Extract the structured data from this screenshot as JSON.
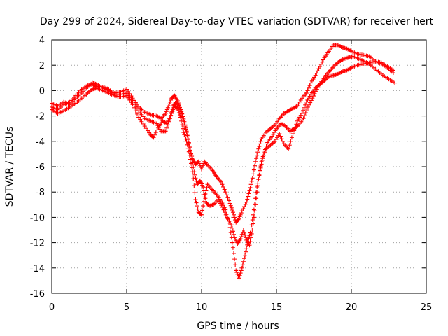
{
  "chart_data": {
    "type": "scatter",
    "title": "Day 299 of 2024, Sidereal Day-to-day VTEC variation (SDTVAR) for receiver hert",
    "xlabel": "GPS time / hours",
    "ylabel": "SDTVAR / TECUs",
    "xlim": [
      0,
      25
    ],
    "ylim": [
      -16,
      4
    ],
    "xticks": [
      "0",
      "5",
      "10",
      "15",
      "20",
      "25"
    ],
    "yticks": [
      "4",
      "2",
      "0",
      "-2",
      "-4",
      "-6",
      "-8",
      "-10",
      "-12",
      "-14",
      "-16"
    ],
    "grid": true,
    "marker": "+",
    "color": "#ff0000",
    "series": [
      {
        "points": [
          [
            0.0,
            -1.0
          ],
          [
            0.4,
            -1.2
          ],
          [
            0.8,
            -0.9
          ],
          [
            1.2,
            -1.1
          ],
          [
            1.6,
            -0.6
          ],
          [
            2.0,
            -0.2
          ],
          [
            2.4,
            0.3
          ],
          [
            2.7,
            0.6
          ],
          [
            3.0,
            0.5
          ],
          [
            3.4,
            0.2
          ],
          [
            3.8,
            0.0
          ],
          [
            4.2,
            -0.2
          ],
          [
            4.6,
            -0.1
          ],
          [
            5.0,
            0.1
          ],
          [
            5.4,
            -0.6
          ],
          [
            5.8,
            -1.3
          ],
          [
            6.2,
            -1.7
          ],
          [
            6.6,
            -1.9
          ],
          [
            7.0,
            -2.0
          ],
          [
            7.3,
            -2.2
          ],
          [
            7.6,
            -1.8
          ],
          [
            7.8,
            -1.2
          ],
          [
            8.0,
            -0.6
          ],
          [
            8.2,
            -0.4
          ],
          [
            8.4,
            -0.8
          ],
          [
            8.6,
            -1.5
          ],
          [
            8.8,
            -2.2
          ],
          [
            9.0,
            -3.2
          ],
          [
            9.2,
            -4.5
          ],
          [
            9.4,
            -5.4
          ],
          [
            9.6,
            -5.8
          ],
          [
            9.8,
            -5.6
          ],
          [
            10.0,
            -6.2
          ],
          [
            10.2,
            -5.6
          ],
          [
            10.5,
            -6.0
          ],
          [
            10.8,
            -6.4
          ],
          [
            11.0,
            -6.8
          ],
          [
            11.3,
            -7.2
          ],
          [
            11.6,
            -8.0
          ],
          [
            11.9,
            -8.9
          ],
          [
            12.1,
            -9.6
          ],
          [
            12.3,
            -10.4
          ],
          [
            12.5,
            -10.1
          ],
          [
            12.7,
            -9.5
          ],
          [
            13.0,
            -8.8
          ],
          [
            13.2,
            -7.9
          ],
          [
            13.4,
            -6.9
          ],
          [
            13.6,
            -5.6
          ],
          [
            13.8,
            -4.6
          ],
          [
            14.0,
            -3.8
          ],
          [
            14.3,
            -3.3
          ],
          [
            14.6,
            -3.0
          ],
          [
            14.9,
            -2.7
          ],
          [
            15.2,
            -2.2
          ],
          [
            15.5,
            -1.8
          ],
          [
            15.8,
            -1.6
          ],
          [
            16.1,
            -1.4
          ],
          [
            16.4,
            -1.2
          ],
          [
            16.7,
            -0.6
          ],
          [
            17.0,
            -0.2
          ],
          [
            17.3,
            0.6
          ],
          [
            17.6,
            1.2
          ],
          [
            17.9,
            1.9
          ],
          [
            18.2,
            2.6
          ],
          [
            18.5,
            3.1
          ],
          [
            18.8,
            3.6
          ],
          [
            19.1,
            3.6
          ],
          [
            19.4,
            3.4
          ],
          [
            19.7,
            3.3
          ],
          [
            20.0,
            3.1
          ],
          [
            20.4,
            2.9
          ],
          [
            20.8,
            2.8
          ],
          [
            21.2,
            2.7
          ],
          [
            21.6,
            2.3
          ],
          [
            22.0,
            2.1
          ],
          [
            22.4,
            1.8
          ],
          [
            22.8,
            1.4
          ]
        ]
      },
      {
        "points": [
          [
            0.0,
            -1.5
          ],
          [
            0.4,
            -1.8
          ],
          [
            0.8,
            -1.6
          ],
          [
            1.2,
            -1.3
          ],
          [
            1.6,
            -1.0
          ],
          [
            2.0,
            -0.6
          ],
          [
            2.4,
            -0.2
          ],
          [
            2.7,
            0.1
          ],
          [
            3.0,
            0.2
          ],
          [
            3.4,
            0.0
          ],
          [
            3.8,
            -0.2
          ],
          [
            4.2,
            -0.4
          ],
          [
            4.6,
            -0.5
          ],
          [
            5.0,
            -0.4
          ],
          [
            5.4,
            -1.1
          ],
          [
            5.8,
            -2.1
          ],
          [
            6.2,
            -2.8
          ],
          [
            6.6,
            -3.5
          ],
          [
            6.8,
            -3.7
          ],
          [
            7.1,
            -2.9
          ],
          [
            7.4,
            -2.4
          ],
          [
            7.7,
            -2.6
          ],
          [
            8.0,
            -1.8
          ],
          [
            8.2,
            -1.2
          ],
          [
            8.4,
            -1.4
          ],
          [
            8.6,
            -2.1
          ],
          [
            8.8,
            -3.3
          ],
          [
            9.0,
            -4.0
          ],
          [
            9.2,
            -5.1
          ],
          [
            9.4,
            -6.4
          ],
          [
            9.6,
            -8.6
          ],
          [
            9.8,
            -9.6
          ],
          [
            10.0,
            -9.8
          ],
          [
            10.2,
            -8.4
          ],
          [
            10.4,
            -7.4
          ],
          [
            10.7,
            -7.8
          ],
          [
            11.0,
            -8.2
          ],
          [
            11.3,
            -8.7
          ],
          [
            11.6,
            -9.4
          ],
          [
            11.9,
            -10.8
          ],
          [
            12.1,
            -12.4
          ],
          [
            12.3,
            -14.2
          ],
          [
            12.5,
            -14.8
          ],
          [
            12.7,
            -14.0
          ],
          [
            12.9,
            -13.0
          ],
          [
            13.1,
            -11.9
          ],
          [
            13.3,
            -11.0
          ],
          [
            13.5,
            -9.4
          ],
          [
            13.7,
            -7.6
          ],
          [
            13.9,
            -6.4
          ],
          [
            14.1,
            -5.2
          ],
          [
            14.4,
            -4.1
          ],
          [
            14.7,
            -3.6
          ],
          [
            15.0,
            -3.0
          ],
          [
            15.3,
            -2.6
          ],
          [
            15.6,
            -2.8
          ],
          [
            15.9,
            -3.2
          ],
          [
            16.2,
            -3.0
          ],
          [
            16.5,
            -2.7
          ],
          [
            16.8,
            -2.2
          ],
          [
            17.1,
            -1.3
          ],
          [
            17.4,
            -0.6
          ],
          [
            17.7,
            0.1
          ],
          [
            18.0,
            0.7
          ],
          [
            18.3,
            1.2
          ],
          [
            18.6,
            1.6
          ],
          [
            18.9,
            2.0
          ],
          [
            19.2,
            2.3
          ],
          [
            19.5,
            2.5
          ],
          [
            19.8,
            2.6
          ],
          [
            20.1,
            2.7
          ],
          [
            20.5,
            2.5
          ],
          [
            20.9,
            2.3
          ],
          [
            21.3,
            2.0
          ],
          [
            21.7,
            1.6
          ],
          [
            22.1,
            1.2
          ],
          [
            22.5,
            0.9
          ],
          [
            22.9,
            0.6
          ]
        ]
      },
      {
        "points": [
          [
            0.0,
            -1.3
          ],
          [
            0.4,
            -1.5
          ],
          [
            0.8,
            -1.1
          ],
          [
            1.2,
            -0.9
          ],
          [
            1.6,
            -0.4
          ],
          [
            2.0,
            0.1
          ],
          [
            2.4,
            0.4
          ],
          [
            2.7,
            0.5
          ],
          [
            3.0,
            0.3
          ],
          [
            3.4,
            0.3
          ],
          [
            3.8,
            0.1
          ],
          [
            4.2,
            -0.3
          ],
          [
            4.6,
            -0.3
          ],
          [
            5.0,
            -0.2
          ],
          [
            5.4,
            -0.9
          ],
          [
            5.8,
            -1.6
          ],
          [
            6.2,
            -2.2
          ],
          [
            6.6,
            -2.4
          ],
          [
            7.0,
            -2.6
          ],
          [
            7.3,
            -3.2
          ],
          [
            7.6,
            -3.2
          ],
          [
            7.9,
            -2.2
          ],
          [
            8.1,
            -1.2
          ],
          [
            8.3,
            -0.9
          ],
          [
            8.5,
            -1.2
          ],
          [
            8.7,
            -1.8
          ],
          [
            8.9,
            -2.8
          ],
          [
            9.1,
            -3.8
          ],
          [
            9.3,
            -5.0
          ],
          [
            9.5,
            -6.4
          ],
          [
            9.7,
            -7.4
          ],
          [
            9.9,
            -7.1
          ],
          [
            10.1,
            -7.6
          ],
          [
            10.3,
            -8.8
          ],
          [
            10.5,
            -9.1
          ],
          [
            10.8,
            -9.0
          ],
          [
            11.1,
            -8.6
          ],
          [
            11.4,
            -9.2
          ],
          [
            11.7,
            -10.0
          ],
          [
            12.0,
            -10.6
          ],
          [
            12.2,
            -11.6
          ],
          [
            12.4,
            -12.1
          ],
          [
            12.6,
            -11.7
          ],
          [
            12.8,
            -11.0
          ],
          [
            13.0,
            -11.8
          ],
          [
            13.2,
            -12.2
          ],
          [
            13.4,
            -11.0
          ],
          [
            13.6,
            -9.0
          ],
          [
            13.8,
            -7.0
          ],
          [
            14.0,
            -5.6
          ],
          [
            14.3,
            -4.6
          ],
          [
            14.6,
            -4.3
          ],
          [
            14.9,
            -4.0
          ],
          [
            15.2,
            -3.4
          ],
          [
            15.5,
            -4.2
          ],
          [
            15.8,
            -4.6
          ],
          [
            16.1,
            -3.4
          ],
          [
            16.4,
            -2.4
          ],
          [
            16.7,
            -1.8
          ],
          [
            17.0,
            -0.9
          ],
          [
            17.3,
            -0.3
          ],
          [
            17.6,
            0.2
          ],
          [
            17.9,
            0.5
          ],
          [
            18.2,
            0.8
          ],
          [
            18.5,
            1.1
          ],
          [
            18.8,
            1.2
          ],
          [
            19.1,
            1.3
          ],
          [
            19.4,
            1.5
          ],
          [
            19.7,
            1.6
          ],
          [
            20.0,
            1.8
          ],
          [
            20.4,
            2.0
          ],
          [
            20.8,
            2.1
          ],
          [
            21.2,
            2.2
          ],
          [
            21.6,
            2.3
          ],
          [
            22.0,
            2.2
          ],
          [
            22.4,
            1.9
          ],
          [
            22.8,
            1.6
          ]
        ]
      }
    ]
  }
}
